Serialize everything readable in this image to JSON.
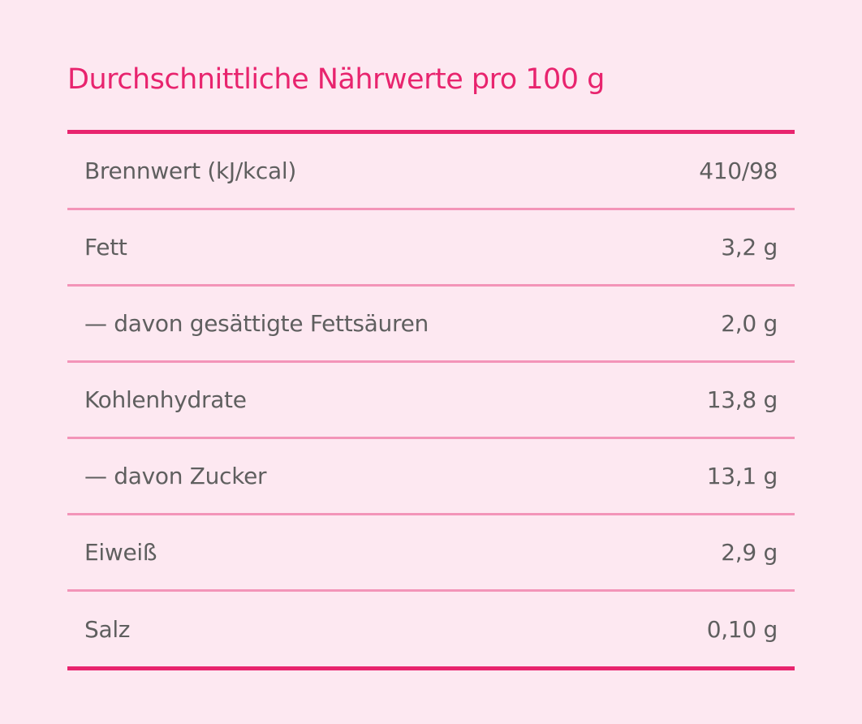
{
  "title": "Durchschnittliche Nährwerte pro 100 g",
  "rows": [
    {
      "label": "Brennwert (kJ/kcal)",
      "value": "410/98"
    },
    {
      "label": "Fett",
      "value": "3,2 g"
    },
    {
      "label": "— davon gesättigte Fettsäuren",
      "value": "2,0 g"
    },
    {
      "label": "Kohlenhydrate",
      "value": "13,8 g"
    },
    {
      "label": "— davon Zucker",
      "value": "13,1 g"
    },
    {
      "label": "Eiweiß",
      "value": "2,9 g"
    },
    {
      "label": "Salz",
      "value": "0,10 g"
    }
  ],
  "colors": {
    "accent": "#e8246e",
    "divider": "#f394b8",
    "background": "#fde8f1",
    "text": "#5f5f5f"
  }
}
